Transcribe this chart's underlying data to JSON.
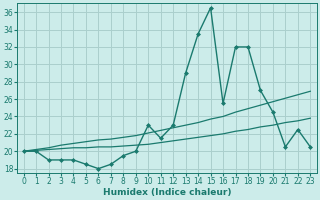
{
  "xlabel": "Humidex (Indice chaleur)",
  "bg_color": "#ccecea",
  "grid_color": "#aacfcd",
  "line_color": "#1a7a6e",
  "xlim": [
    -0.5,
    23.5
  ],
  "ylim": [
    17.5,
    37.0
  ],
  "yticks": [
    18,
    20,
    22,
    24,
    26,
    28,
    30,
    32,
    34,
    36
  ],
  "xticks": [
    0,
    1,
    2,
    3,
    4,
    5,
    6,
    7,
    8,
    9,
    10,
    11,
    12,
    13,
    14,
    15,
    16,
    17,
    18,
    19,
    20,
    21,
    22,
    23
  ],
  "main_data": [
    20.0,
    20.0,
    19.0,
    19.0,
    19.0,
    18.5,
    18.0,
    18.5,
    19.5,
    20.0,
    23.0,
    21.5,
    23.0,
    29.0,
    33.5,
    36.5,
    25.5,
    32.0,
    32.0,
    27.0,
    24.5,
    20.5,
    22.5,
    20.5
  ],
  "line1_data": [
    20.0,
    20.1,
    20.2,
    20.3,
    20.4,
    20.4,
    20.5,
    20.5,
    20.6,
    20.7,
    20.8,
    21.0,
    21.2,
    21.4,
    21.6,
    21.8,
    22.0,
    22.3,
    22.5,
    22.8,
    23.0,
    23.3,
    23.5,
    23.8
  ],
  "line2_data": [
    20.0,
    20.2,
    20.4,
    20.7,
    20.9,
    21.1,
    21.3,
    21.4,
    21.6,
    21.8,
    22.1,
    22.4,
    22.7,
    23.0,
    23.3,
    23.7,
    24.0,
    24.5,
    24.9,
    25.3,
    25.7,
    26.1,
    26.5,
    26.9
  ]
}
